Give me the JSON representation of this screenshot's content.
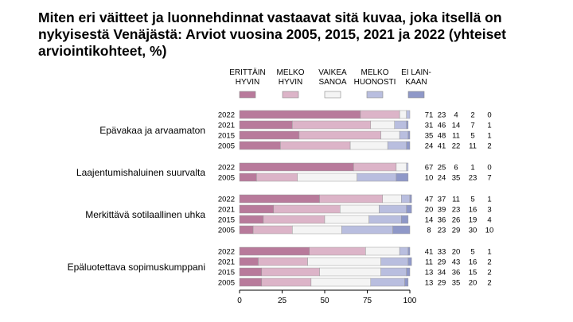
{
  "title": "Miten eri väitteet ja luonnehdinnat vastaavat sitä kuvaa, joka itsellä on nykyisestä Venäjästä: Arviot vuosina 2005, 2015, 2021 ja 2022 (yhteiset arviointikohteet, %)",
  "chart_data": {
    "type": "bar",
    "orientation": "horizontal",
    "stacked": true,
    "title": "Miten eri väitteet ja luonnehdinnat vastaavat sitä kuvaa, joka itsellä on nykyisestä Venäjästä: Arviot vuosina 2005, 2015, 2021 ja 2022 (yhteiset arviointikohteet, %)",
    "xlim": [
      0,
      100
    ],
    "xticks": [
      "0",
      "25",
      "50",
      "75",
      "100"
    ],
    "legend_position": "top",
    "series": [
      {
        "name": "ERITTÄIN HYVIN",
        "lines": [
          "ERITTÄIN",
          "HYVIN"
        ],
        "color": "#b87a9b"
      },
      {
        "name": "MELKO HYVIN",
        "lines": [
          "MELKO",
          "HYVIN"
        ],
        "color": "#dcb4c8"
      },
      {
        "name": "VAIKEA SANOA",
        "lines": [
          "VAIKEA",
          "SANOA"
        ],
        "color": "#f4f4f4"
      },
      {
        "name": "MELKO HUONOSTI",
        "lines": [
          "MELKO",
          "HUONOSTI"
        ],
        "color": "#b9bedf"
      },
      {
        "name": "EI LAINKAAN",
        "lines": [
          "EI LAIN-",
          "KAAN"
        ],
        "color": "#8f98c8"
      }
    ],
    "groups": [
      {
        "label": "Epävakaa ja arvaamaton",
        "rows": [
          {
            "year": "2022",
            "values": [
              71,
              23,
              4,
              2,
              0
            ]
          },
          {
            "year": "2021",
            "values": [
              31,
              46,
              14,
              7,
              1
            ]
          },
          {
            "year": "2015",
            "values": [
              35,
              48,
              11,
              5,
              1
            ]
          },
          {
            "year": "2005",
            "values": [
              24,
              41,
              22,
              11,
              2
            ]
          }
        ]
      },
      {
        "label": "Laajentumishaluinen suurvalta",
        "rows": [
          {
            "year": "2022",
            "values": [
              67,
              25,
              6,
              1,
              0
            ]
          },
          {
            "year": "2005",
            "values": [
              10,
              24,
              35,
              23,
              7
            ]
          }
        ]
      },
      {
        "label": "Merkittävä sotilaallinen uhka",
        "rows": [
          {
            "year": "2022",
            "values": [
              47,
              37,
              11,
              5,
              1
            ]
          },
          {
            "year": "2021",
            "values": [
              20,
              39,
              23,
              16,
              3
            ]
          },
          {
            "year": "2015",
            "values": [
              14,
              36,
              26,
              19,
              4
            ]
          },
          {
            "year": "2005",
            "values": [
              8,
              23,
              29,
              30,
              10
            ]
          }
        ]
      },
      {
        "label": "Epäluotettava sopimuskumppani",
        "rows": [
          {
            "year": "2022",
            "values": [
              41,
              33,
              20,
              5,
              1
            ]
          },
          {
            "year": "2021",
            "values": [
              11,
              29,
              43,
              16,
              2
            ]
          },
          {
            "year": "2015",
            "values": [
              13,
              34,
              36,
              15,
              2
            ]
          },
          {
            "year": "2005",
            "values": [
              13,
              29,
              35,
              20,
              2
            ]
          }
        ]
      }
    ]
  }
}
